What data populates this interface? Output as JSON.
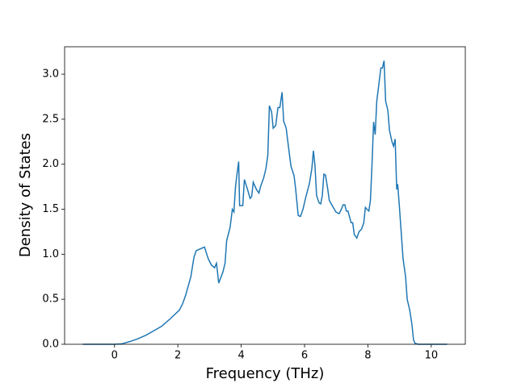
{
  "chart_data": {
    "type": "line",
    "xlabel": "Frequency (THz)",
    "ylabel": "Density of States",
    "xlim": [
      -1.575,
      11.075
    ],
    "ylim": [
      0,
      3.305
    ],
    "xticks": [
      0,
      2,
      4,
      6,
      8,
      10
    ],
    "yticks": [
      {
        "value": 0,
        "label": "0.0"
      },
      0.5,
      {
        "value": 1,
        "label": "1.0"
      },
      1.5,
      {
        "value": 2,
        "label": "2.0"
      },
      2.5,
      {
        "value": 3,
        "label": "3.0"
      }
    ],
    "series": [
      {
        "color": "#1f77b4",
        "x": [
          -1.0,
          0,
          0.23,
          0.48,
          0.73,
          0.99,
          1.24,
          1.49,
          1.75,
          2.05,
          2.15,
          2.25,
          2.41,
          2.51,
          2.58,
          2.84,
          2.96,
          3.06,
          3.16,
          3.22,
          3.29,
          3.42,
          3.49,
          3.54,
          3.65,
          3.72,
          3.77,
          3.82,
          3.87,
          3.92,
          3.95,
          4.05,
          4.1,
          4.2,
          4.28,
          4.33,
          4.38,
          4.48,
          4.56,
          4.61,
          4.71,
          4.78,
          4.84,
          4.89,
          4.96,
          5.01,
          5.09,
          5.16,
          5.22,
          5.29,
          5.34,
          5.42,
          5.49,
          5.57,
          5.67,
          5.72,
          5.8,
          5.87,
          5.95,
          6.05,
          6.15,
          6.23,
          6.28,
          6.33,
          6.38,
          6.46,
          6.51,
          6.56,
          6.61,
          6.66,
          6.73,
          6.78,
          6.89,
          6.99,
          7.09,
          7.16,
          7.22,
          7.27,
          7.32,
          7.37,
          7.47,
          7.52,
          7.57,
          7.65,
          7.72,
          7.8,
          7.87,
          7.92,
          7.97,
          8.03,
          8.08,
          8.13,
          8.18,
          8.23,
          8.28,
          8.35,
          8.41,
          8.46,
          8.51,
          8.56,
          8.63,
          8.68,
          8.76,
          8.81,
          8.86,
          8.91,
          8.94,
          8.99,
          9.04,
          9.11,
          9.19,
          9.24,
          9.32,
          9.39,
          9.44,
          9.49,
          9.59,
          10.5
        ],
        "values": [
          0,
          0,
          0.005,
          0.03,
          0.06,
          0.1,
          0.15,
          0.2,
          0.28,
          0.38,
          0.45,
          0.55,
          0.75,
          0.97,
          1.04,
          1.08,
          0.95,
          0.88,
          0.85,
          0.9,
          0.68,
          0.8,
          0.9,
          1.15,
          1.3,
          1.5,
          1.47,
          1.75,
          1.9,
          2.03,
          1.54,
          1.54,
          1.83,
          1.72,
          1.62,
          1.64,
          1.8,
          1.72,
          1.68,
          1.75,
          1.85,
          1.95,
          2.1,
          2.65,
          2.58,
          2.4,
          2.43,
          2.63,
          2.63,
          2.8,
          2.48,
          2.4,
          2.2,
          1.98,
          1.87,
          1.72,
          1.43,
          1.42,
          1.5,
          1.65,
          1.78,
          1.95,
          2.15,
          1.98,
          1.65,
          1.57,
          1.56,
          1.65,
          1.89,
          1.88,
          1.73,
          1.6,
          1.53,
          1.47,
          1.45,
          1.5,
          1.55,
          1.55,
          1.48,
          1.48,
          1.35,
          1.35,
          1.22,
          1.18,
          1.25,
          1.28,
          1.35,
          1.52,
          1.5,
          1.48,
          1.6,
          2.0,
          2.47,
          2.33,
          2.7,
          2.9,
          3.07,
          3.07,
          3.15,
          2.7,
          2.6,
          2.38,
          2.25,
          2.2,
          2.28,
          1.72,
          1.78,
          1.55,
          1.3,
          0.95,
          0.75,
          0.5,
          0.38,
          0.22,
          0.05,
          0.01,
          0,
          0
        ]
      }
    ]
  }
}
